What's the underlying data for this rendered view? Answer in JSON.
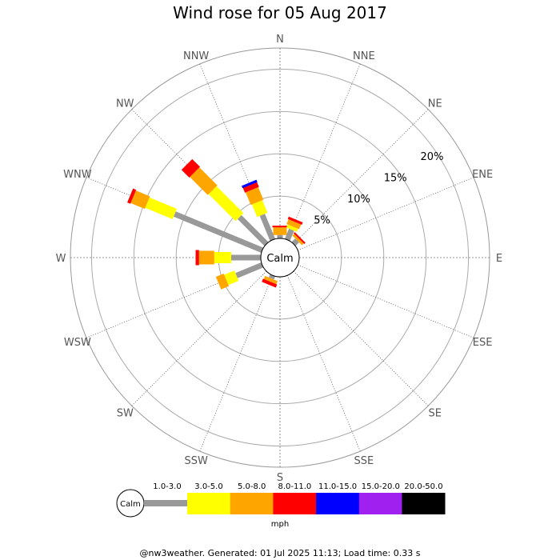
{
  "title": "Wind rose for 05 Aug 2017",
  "footer": "@nw3weather. Generated: 01 Jul 2025 11:13; Load time: 0.33 s",
  "chart_data": {
    "type": "wind-rose",
    "title": "Wind rose for 05 Aug 2017",
    "calm_label": "Calm",
    "unit": "mph",
    "directions": [
      "N",
      "NNE",
      "NE",
      "ENE",
      "E",
      "ESE",
      "SE",
      "SSE",
      "S",
      "SSW",
      "SW",
      "WSW",
      "W",
      "WNW",
      "NW",
      "NNW"
    ],
    "percent_ticks": [
      {
        "value": 5,
        "label": "5%"
      },
      {
        "value": 10,
        "label": "10%"
      },
      {
        "value": 15,
        "label": "15%"
      },
      {
        "value": 20,
        "label": "20%"
      }
    ],
    "max_percent": 22.5,
    "speed_bins": [
      {
        "label": "1.0-3.0",
        "color": "#999999"
      },
      {
        "label": "3.0-5.0",
        "color": "#ffff00"
      },
      {
        "label": "5.0-8.0",
        "color": "#ffa500"
      },
      {
        "label": "8.0-11.0",
        "color": "#ff0000"
      },
      {
        "label": "11.0-15.0",
        "color": "#0000ff"
      },
      {
        "label": "15.0-20.0",
        "color": "#a020f0"
      },
      {
        "label": "20.0-50.0",
        "color": "#000000"
      }
    ],
    "series_by_direction": [
      {
        "dir": "N",
        "values": [
          0.4,
          0.0,
          0.9,
          0.2,
          0,
          0,
          0
        ]
      },
      {
        "dir": "NNE",
        "values": [
          1.3,
          0.4,
          0.6,
          0.3,
          0,
          0,
          0
        ]
      },
      {
        "dir": "NE",
        "values": [
          0.6,
          0.0,
          0.3,
          0.2,
          0,
          0,
          0
        ]
      },
      {
        "dir": "ENE",
        "values": [
          0,
          0,
          0,
          0,
          0,
          0,
          0
        ]
      },
      {
        "dir": "E",
        "values": [
          0,
          0,
          0,
          0,
          0,
          0,
          0
        ]
      },
      {
        "dir": "ESE",
        "values": [
          0,
          0,
          0,
          0,
          0,
          0,
          0
        ]
      },
      {
        "dir": "SE",
        "values": [
          0,
          0,
          0,
          0,
          0,
          0,
          0
        ]
      },
      {
        "dir": "SSE",
        "values": [
          0,
          0,
          0,
          0,
          0,
          0,
          0
        ]
      },
      {
        "dir": "S",
        "values": [
          0,
          0,
          0,
          0,
          0,
          0,
          0
        ]
      },
      {
        "dir": "SSW",
        "values": [
          0.4,
          0.0,
          0.4,
          0.4,
          0,
          0,
          0
        ]
      },
      {
        "dir": "SW",
        "values": [
          0,
          0,
          0,
          0,
          0,
          0,
          0
        ]
      },
      {
        "dir": "WSW",
        "values": [
          3.3,
          1.3,
          1.0,
          0,
          0,
          0,
          0
        ]
      },
      {
        "dir": "W",
        "values": [
          3.5,
          2.0,
          1.8,
          0.4,
          0,
          0,
          0
        ]
      },
      {
        "dir": "WNW",
        "values": [
          11.2,
          3.5,
          1.8,
          0.4,
          0,
          0,
          0
        ]
      },
      {
        "dir": "NW",
        "values": [
          4.5,
          4.5,
          3.0,
          1.3,
          0,
          0,
          0
        ]
      },
      {
        "dir": "NNW",
        "values": [
          3.2,
          1.6,
          1.6,
          0.6,
          0.3,
          0,
          0
        ]
      }
    ]
  }
}
